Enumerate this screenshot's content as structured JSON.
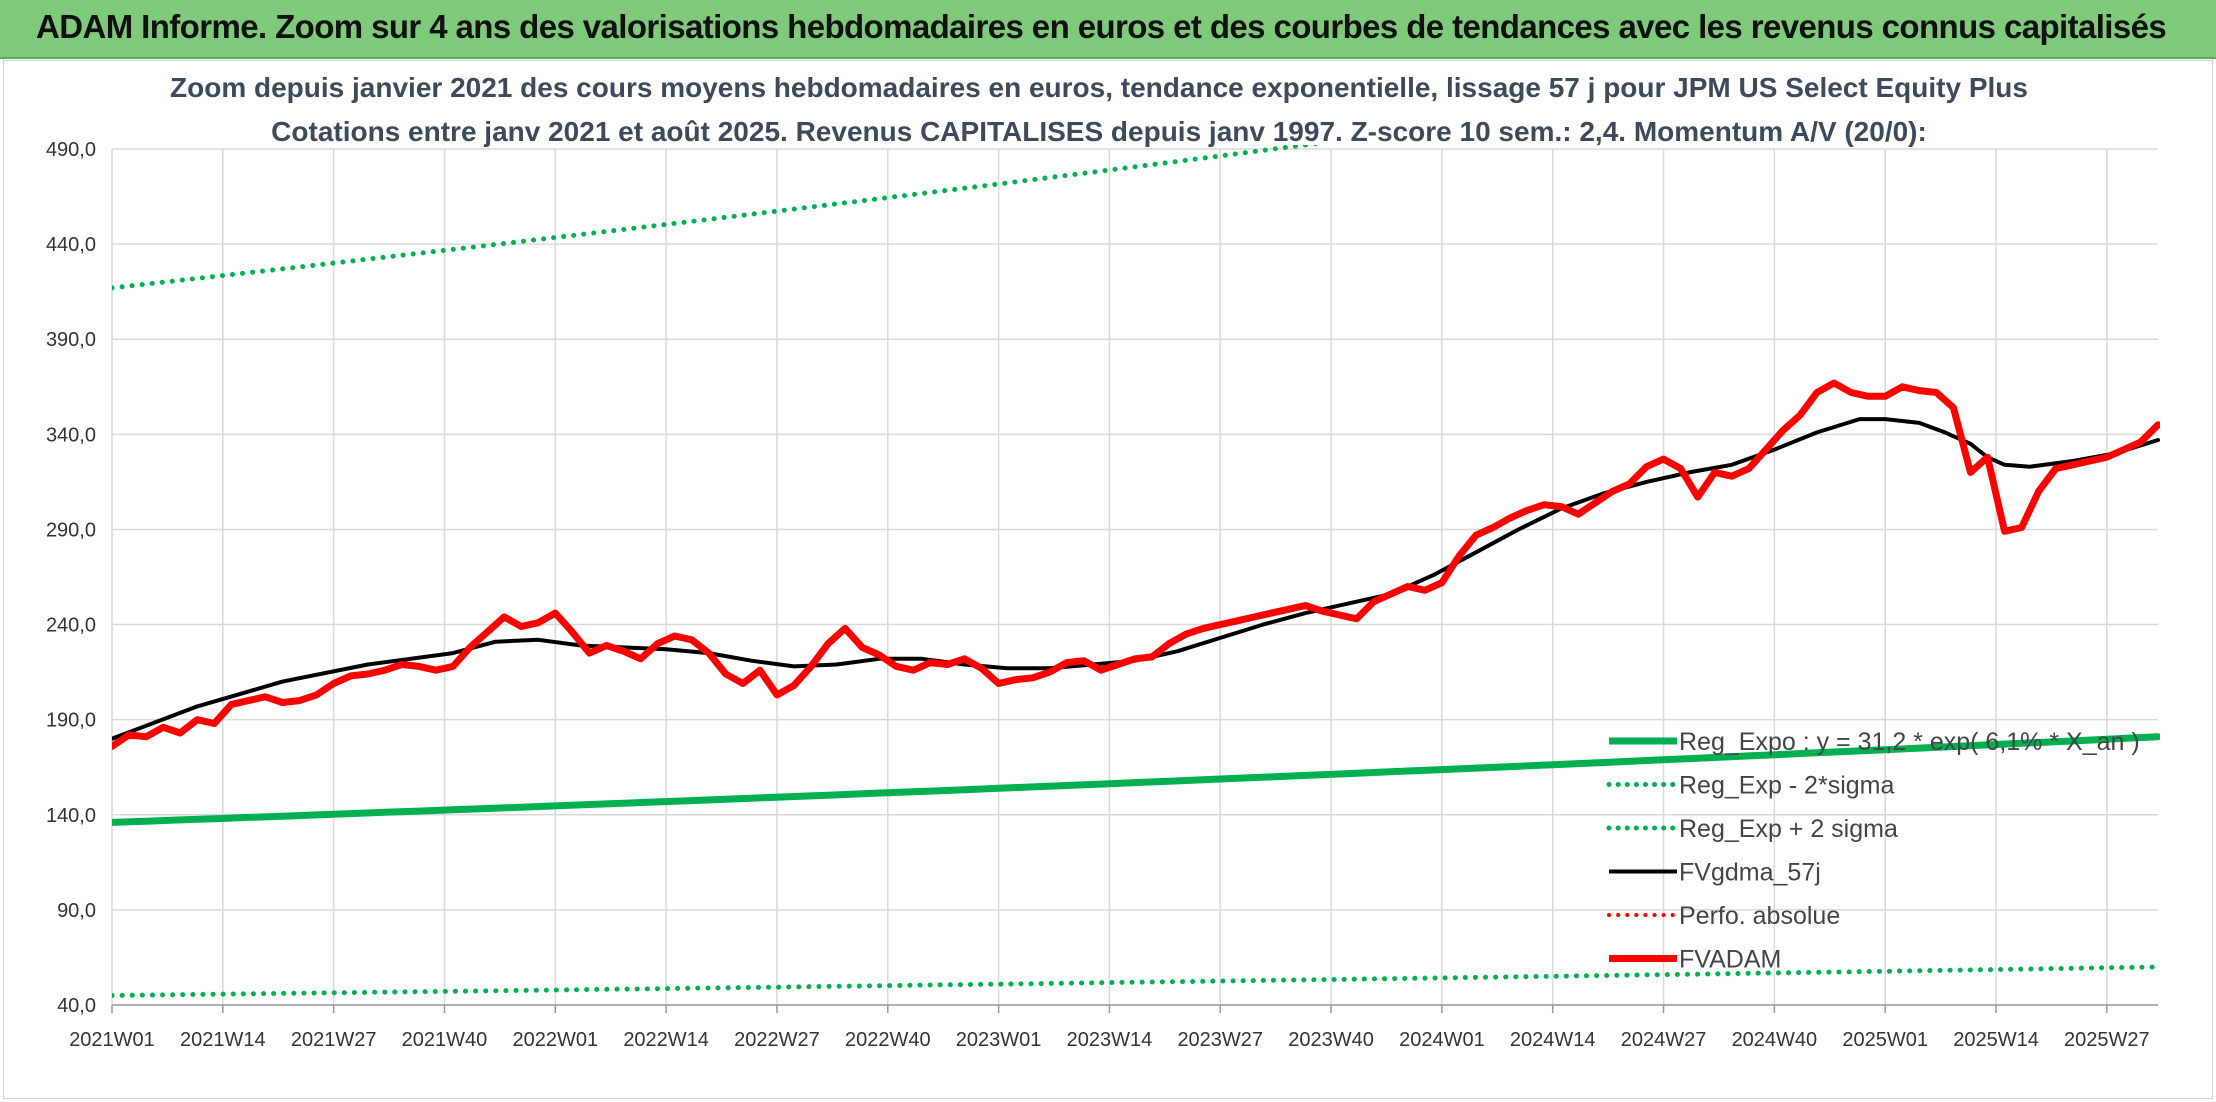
{
  "banner": {
    "title": "ADAM Informe. Zoom sur 4 ans des valorisations hebdomadaires en euros et des courbes de tendances avec les revenus connus capitalisés"
  },
  "chart_data": {
    "type": "line",
    "title_line1": "Zoom depuis janvier 2021 des cours moyens hebdomadaires en euros, tendance exponentielle, lissage 57 j pour JPM US Select Equity Plus",
    "title_line2": "Cotations entre janv 2021 et août 2025. Revenus CAPITALISES depuis janv 1997. Z-score 10 sem.: 2,4. Momentum A/V (20/0):",
    "ylim": [
      40,
      490
    ],
    "yticks": [
      "490,0",
      "440,0",
      "390,0",
      "340,0",
      "290,0",
      "240,0",
      "190,0",
      "140,0",
      "90,0",
      "40,0"
    ],
    "ytick_values": [
      490,
      440,
      390,
      340,
      290,
      240,
      190,
      140,
      90,
      40
    ],
    "xlim": [
      0,
      240
    ],
    "xticks": [
      "2021W01",
      "2021W14",
      "2021W27",
      "2021W40",
      "2022W01",
      "2022W14",
      "2022W27",
      "2022W40",
      "2023W01",
      "2023W14",
      "2023W27",
      "2023W40",
      "2024W01",
      "2024W14",
      "2024W27",
      "2024W40",
      "2025W01",
      "2025W14",
      "2025W27"
    ],
    "xtick_positions": [
      0,
      13,
      26,
      39,
      52,
      65,
      78,
      91,
      104,
      117,
      130,
      143,
      156,
      169,
      182,
      195,
      208,
      221,
      234
    ],
    "grid": true,
    "legend_position": "bottom-right",
    "series": [
      {
        "name": "Reg_Expo : y = 31,2 * exp( 6,1% * X_an )",
        "color": "#00b050",
        "style": "solid",
        "width": 7,
        "x": [
          0,
          240
        ],
        "y": [
          136,
          181
        ],
        "curve": "exponential"
      },
      {
        "name": "Reg_Exp - 2*sigma",
        "color": "#00b050",
        "style": "dotted",
        "width": 5,
        "x": [
          0,
          240
        ],
        "y": [
          45,
          60
        ],
        "curve": "exponential"
      },
      {
        "name": "Reg_Exp + 2 sigma",
        "color": "#00b050",
        "style": "dotted",
        "width": 5,
        "x": [
          0,
          240
        ],
        "y": [
          417,
          554
        ],
        "curve": "exponential"
      },
      {
        "name": "FVgdma_57j",
        "color": "#000000",
        "style": "solid",
        "width": 4,
        "x": [
          0,
          10,
          20,
          30,
          40,
          45,
          50,
          55,
          60,
          65,
          70,
          75,
          80,
          85,
          90,
          95,
          100,
          105,
          110,
          115,
          120,
          125,
          130,
          135,
          140,
          145,
          150,
          155,
          160,
          165,
          170,
          175,
          180,
          185,
          190,
          195,
          200,
          205,
          208,
          212,
          215,
          218,
          220,
          222,
          225,
          230,
          235,
          240
        ],
        "y": [
          180,
          197,
          210,
          219,
          225,
          231,
          232,
          229,
          228,
          227,
          225,
          221,
          218,
          219,
          222,
          222,
          219,
          217,
          217,
          219,
          221,
          226,
          233,
          240,
          246,
          251,
          256,
          266,
          278,
          290,
          301,
          309,
          315,
          320,
          324,
          332,
          341,
          348,
          348,
          346,
          341,
          335,
          328,
          324,
          323,
          326,
          330,
          337
        ]
      },
      {
        "name": "Perfo. absolue",
        "color": "#ff0000",
        "style": "dotted",
        "width": 4,
        "x": [],
        "y": []
      },
      {
        "name": "FVADAM",
        "color": "#ff0000",
        "style": "solid",
        "width": 7,
        "x": [
          0,
          2,
          4,
          6,
          8,
          10,
          12,
          14,
          16,
          18,
          20,
          22,
          24,
          26,
          28,
          30,
          32,
          34,
          36,
          38,
          40,
          42,
          44,
          46,
          48,
          50,
          52,
          54,
          56,
          58,
          60,
          62,
          64,
          66,
          68,
          70,
          72,
          74,
          76,
          78,
          80,
          82,
          84,
          86,
          88,
          90,
          92,
          94,
          96,
          98,
          100,
          102,
          104,
          106,
          108,
          110,
          112,
          114,
          116,
          118,
          120,
          122,
          124,
          126,
          128,
          130,
          132,
          134,
          136,
          138,
          140,
          142,
          144,
          146,
          148,
          150,
          152,
          154,
          156,
          158,
          160,
          162,
          164,
          166,
          168,
          170,
          172,
          174,
          176,
          178,
          180,
          182,
          184,
          186,
          188,
          190,
          192,
          194,
          196,
          198,
          200,
          202,
          204,
          206,
          208,
          210,
          212,
          214,
          216,
          218,
          220,
          222,
          224,
          226,
          228,
          230,
          232,
          234,
          236,
          238,
          240
        ],
        "y": [
          176,
          182,
          181,
          186,
          183,
          190,
          188,
          198,
          200,
          202,
          199,
          200,
          203,
          209,
          213,
          214,
          216,
          219,
          218,
          216,
          218,
          228,
          236,
          244,
          239,
          241,
          246,
          236,
          225,
          229,
          226,
          222,
          230,
          234,
          232,
          225,
          214,
          209,
          216,
          203,
          208,
          218,
          230,
          238,
          228,
          224,
          218,
          216,
          220,
          219,
          222,
          217,
          209,
          211,
          212,
          215,
          220,
          221,
          216,
          219,
          222,
          223,
          230,
          235,
          238,
          240,
          242,
          244,
          246,
          248,
          250,
          247,
          245,
          243,
          252,
          256,
          260,
          258,
          262,
          276,
          287,
          291,
          296,
          300,
          303,
          302,
          298,
          304,
          310,
          314,
          323,
          327,
          322,
          307,
          320,
          318,
          322,
          332,
          342,
          350,
          362,
          367,
          362,
          360,
          360,
          365,
          363,
          362,
          354,
          320,
          328,
          289,
          291,
          310,
          322,
          324,
          326,
          328,
          332,
          336,
          345
        ]
      }
    ]
  }
}
